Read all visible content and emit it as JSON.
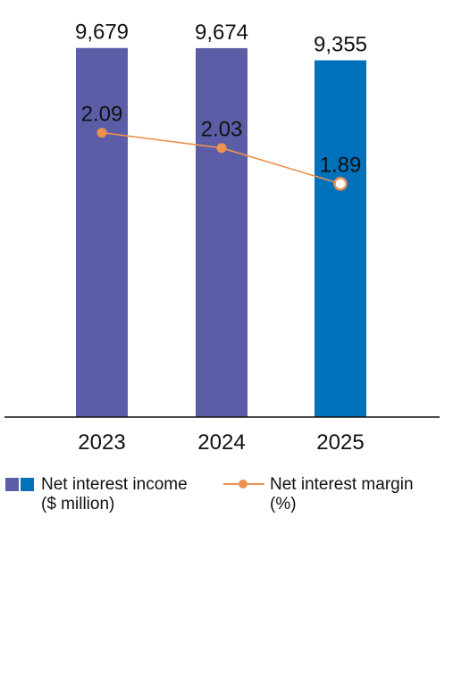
{
  "chart_data": {
    "type": "bar",
    "categories": [
      "2023",
      "2024",
      "2025"
    ],
    "series": [
      {
        "name": "Net interest income ($ million)",
        "type": "bar",
        "values": [
          9679,
          9674,
          9355
        ],
        "value_labels": [
          "9,679",
          "9,674",
          "9,355"
        ],
        "colors": [
          "#5b5ea6",
          "#5b5ea6",
          "#0072bc"
        ]
      },
      {
        "name": "Net interest margin (%)",
        "type": "line",
        "values": [
          2.09,
          2.03,
          1.89
        ],
        "value_labels": [
          "2.09",
          "2.03",
          "1.89"
        ],
        "color": "#ee9150",
        "last_marker": "hollow"
      }
    ],
    "bar_ylim": [
      0,
      10000
    ],
    "line_ylim": [
      1.0,
      2.4
    ],
    "grid": false,
    "legend": {
      "placement": "bottom",
      "items": [
        {
          "line1": "Net interest income",
          "line2": "($ million)",
          "swatch_colors": [
            "#5b5ea6",
            "#0072bc"
          ]
        },
        {
          "line1": "Net interest margin",
          "line2": "(%)",
          "swatch_color": "#ee9150"
        }
      ]
    }
  }
}
